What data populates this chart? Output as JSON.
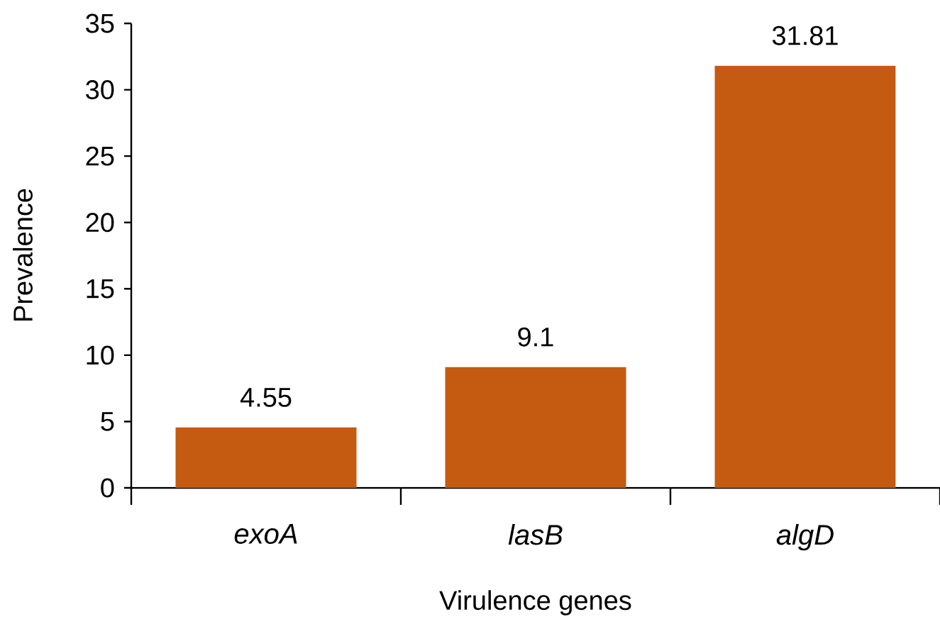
{
  "chart_data": {
    "type": "bar",
    "categories": [
      "exoA",
      "lasB",
      "algD"
    ],
    "values": [
      4.55,
      9.1,
      31.81
    ],
    "color": "#c55a11",
    "xlabel": "Virulence genes",
    "ylabel": "Prevalence",
    "ylim": [
      0,
      35
    ],
    "yticks": [
      0,
      5,
      10,
      15,
      20,
      25,
      30,
      35
    ],
    "data_labels": true
  }
}
